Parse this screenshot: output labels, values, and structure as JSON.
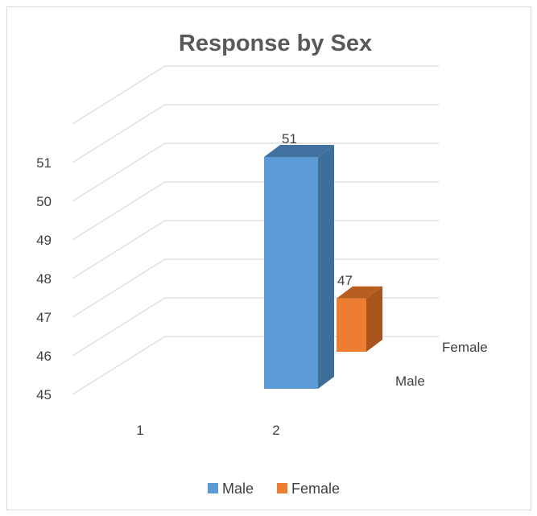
{
  "chart_data": {
    "type": "bar",
    "title": "Response by Sex",
    "categories": [
      "1",
      "2"
    ],
    "depth_labels": [
      "Male",
      "Female"
    ],
    "series": [
      {
        "name": "Male",
        "values": [
          null,
          51
        ],
        "color": "#5B9BD5",
        "side_color": "#3E6F9B",
        "top_color": "#41729F"
      },
      {
        "name": "Female",
        "values": [
          null,
          47
        ],
        "color": "#ED7D31",
        "side_color": "#A9541C",
        "top_color": "#B85E21"
      }
    ],
    "ylim": [
      45,
      51
    ],
    "yticks": [
      45,
      46,
      47,
      48,
      49,
      50,
      51
    ],
    "grid": true,
    "legend": "bottom"
  }
}
